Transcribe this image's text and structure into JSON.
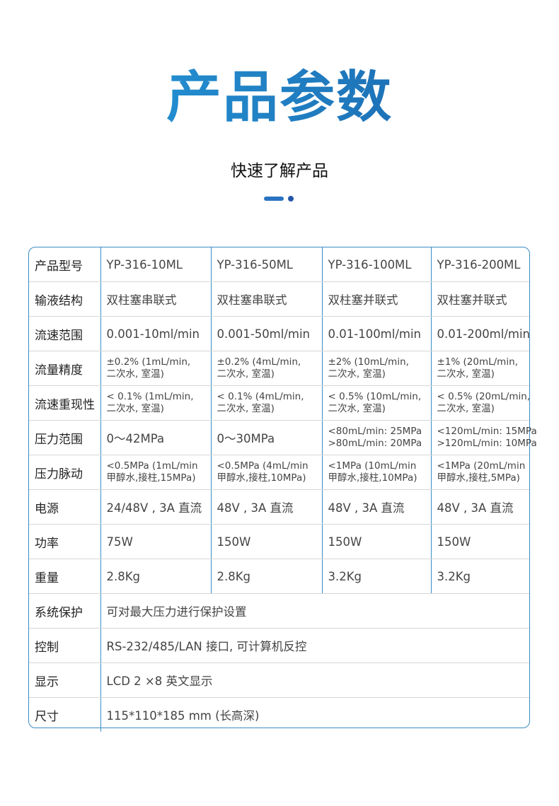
{
  "header": {
    "title": "产品参数",
    "subtitle": "快速了解产品"
  },
  "table": {
    "rows": [
      {
        "label": "产品型号",
        "values": [
          "YP-316-10ML",
          "YP-316-50ML",
          "YP-316-100ML",
          "YP-316-200ML"
        ]
      },
      {
        "label": "输液结构",
        "values": [
          "双柱塞串联式",
          "双柱塞串联式",
          "双柱塞并联式",
          "双柱塞并联式"
        ]
      },
      {
        "label": "流速范围",
        "values": [
          "0.001-10ml/min",
          "0.001-50ml/min",
          "0.01-100ml/min",
          "0.01-200ml/min"
        ]
      },
      {
        "label": "流量精度",
        "small": true,
        "values": [
          [
            "±0.2% (1mL/min,",
            "二次水, 室温)"
          ],
          [
            "±0.2% (4mL/min,",
            "二次水, 室温)"
          ],
          [
            "±2% (10mL/min,",
            "二次水, 室温)"
          ],
          [
            "±1% (20mL/min,",
            "二次水, 室温)"
          ]
        ]
      },
      {
        "label": "流速重现性",
        "small": true,
        "values": [
          [
            "< 0.1% (1mL/min,",
            "二次水, 室温)"
          ],
          [
            "< 0.1% (4mL/min,",
            "二次水, 室温)"
          ],
          [
            "< 0.5% (10mL/min,",
            "二次水, 室温)"
          ],
          [
            "< 0.5% (20mL/min,",
            "二次水, 室温)"
          ]
        ]
      },
      {
        "label": "压力范围",
        "values": [
          "0～42MPa",
          "0～30MPa",
          [
            "<80mL/min: 25MPa",
            ">80mL/min: 20MPa"
          ],
          [
            "<120mL/min: 15MPa",
            ">120mL/min: 10MPa"
          ]
        ]
      },
      {
        "label": "压力脉动",
        "small": true,
        "values": [
          [
            "<0.5MPa (1mL/min",
            "甲醇水,接柱,15MPa)"
          ],
          [
            "<0.5MPa (4mL/min",
            "甲醇水,接柱,10MPa)"
          ],
          [
            "<1MPa (10mL/min",
            "甲醇水,接柱,10MPa)"
          ],
          [
            "<1MPa (20mL/min",
            "甲醇水,接柱,5MPa)"
          ]
        ]
      },
      {
        "label": "电源",
        "values": [
          "24/48V , 3A 直流",
          "48V , 3A 直流",
          "48V , 3A 直流",
          "48V , 3A 直流"
        ]
      },
      {
        "label": "功率",
        "values": [
          "75W",
          "150W",
          "150W",
          "150W"
        ]
      },
      {
        "label": "重量",
        "values": [
          "2.8Kg",
          "2.8Kg",
          "3.2Kg",
          "3.2Kg"
        ]
      },
      {
        "label": "系统保护",
        "merged": "可对最大压力进行保护设置"
      },
      {
        "label": "控制",
        "merged": "RS-232/485/LAN 接口, 可计算机反控"
      },
      {
        "label": "显示",
        "merged": "LCD 2 ×8 英文显示"
      },
      {
        "label": "尺寸",
        "merged": "115*110*185 mm (长高深)"
      }
    ]
  },
  "colors": {
    "accent": "#1f86cf",
    "border": "#3a8cc4"
  }
}
